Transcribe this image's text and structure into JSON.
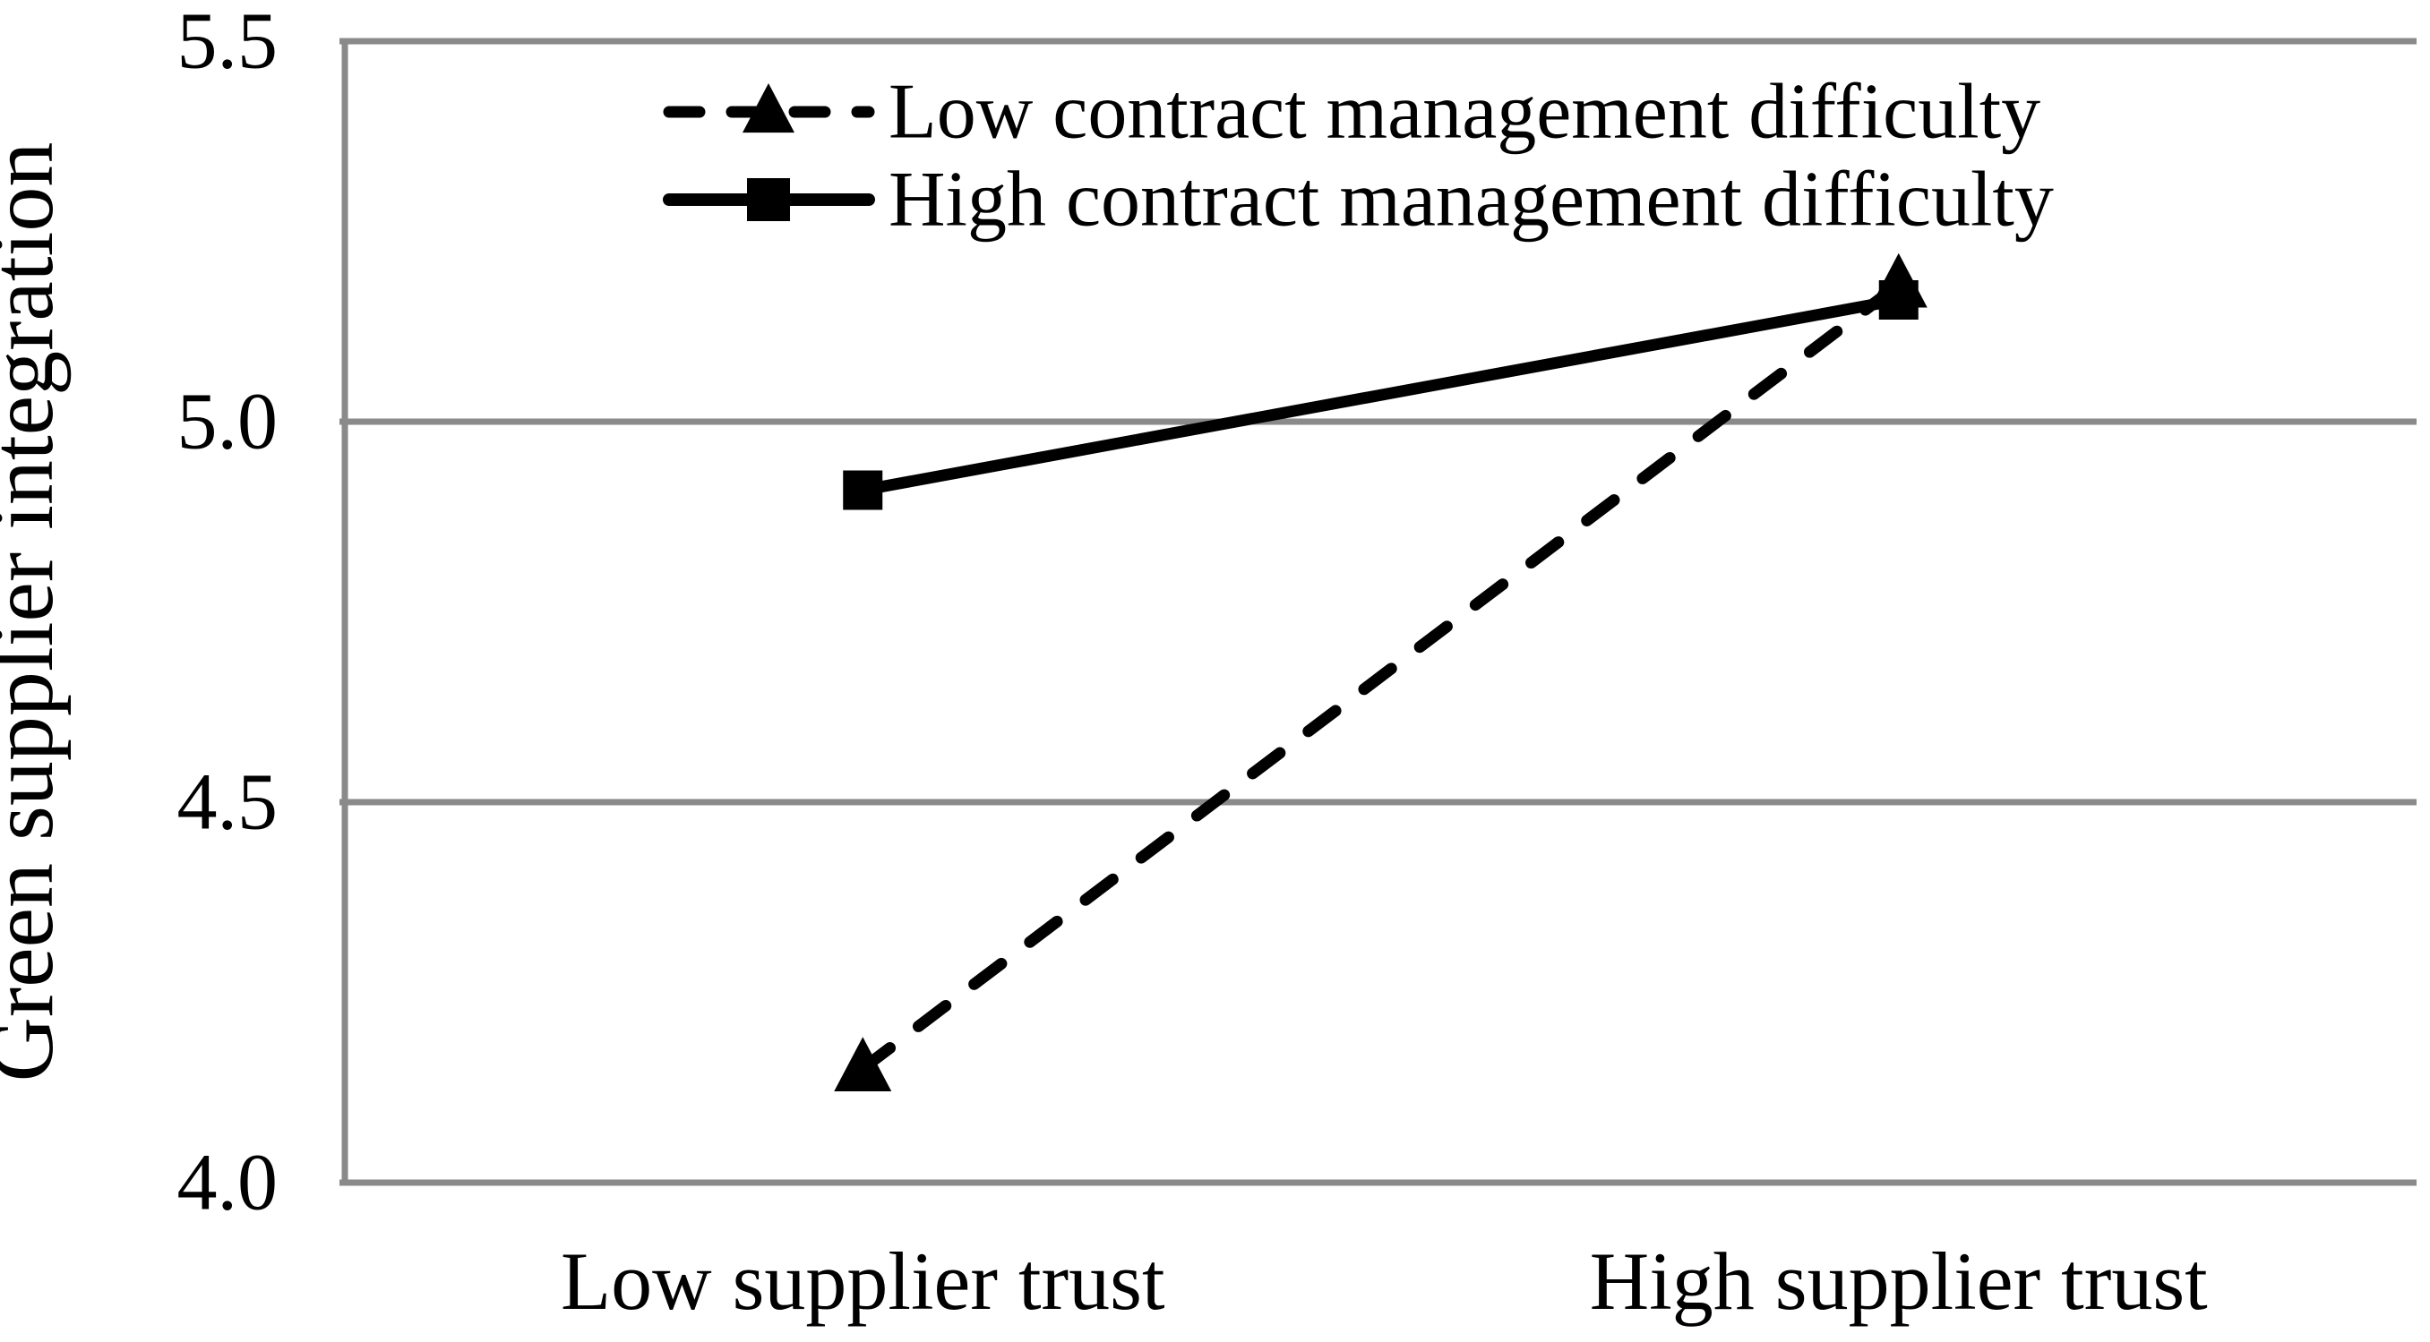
{
  "figure": {
    "background": "#ffffff"
  },
  "colors": {
    "series": "#000000",
    "grid": "#8a8a8a",
    "text": "#000000"
  },
  "chart_data": {
    "type": "line",
    "title": "",
    "categories": [
      "Low supplier trust",
      "High supplier trust"
    ],
    "series": [
      {
        "name": "Low contract management difficulty",
        "values": [
          4.15,
          5.18
        ],
        "line_style": "dashed",
        "marker": "triangle",
        "color": "#000000"
      },
      {
        "name": "High contract management difficulty",
        "values": [
          4.91,
          5.16
        ],
        "line_style": "solid",
        "marker": "square",
        "color": "#000000"
      }
    ],
    "xlabel": "",
    "ylabel": "Green supplier integration",
    "ylim": [
      4.0,
      5.5
    ],
    "yticks": [
      4.0,
      4.5,
      5.0,
      5.5
    ],
    "ytick_labels": [
      "4.0",
      "4.5",
      "5.0",
      "5.5"
    ],
    "grid": true,
    "legend_position": "top-inside"
  }
}
